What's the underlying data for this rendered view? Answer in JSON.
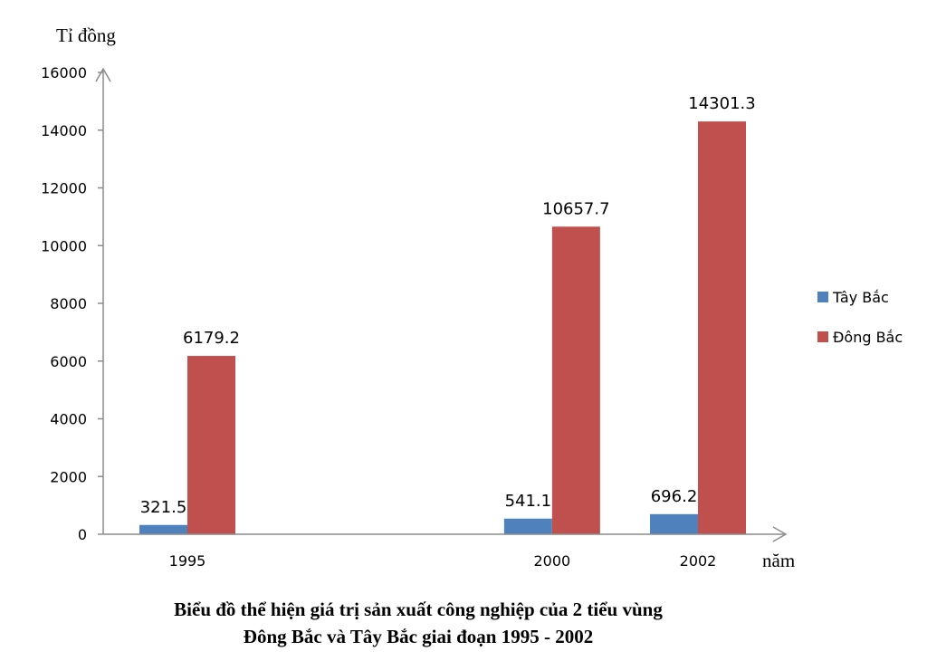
{
  "chart_data": {
    "type": "bar",
    "ylabel": "Tỉ đồng",
    "xlabel": "năm",
    "categories": [
      "1995",
      "2000",
      "2002"
    ],
    "x_positions": [
      1995,
      2000,
      2002
    ],
    "ylim": [
      0,
      16000
    ],
    "yticks": [
      0,
      2000,
      4000,
      6000,
      8000,
      10000,
      12000,
      14000,
      16000
    ],
    "series": [
      {
        "name": "Tây Bắc",
        "color": "#4f81bd",
        "values": [
          321.5,
          541.1,
          696.2
        ]
      },
      {
        "name": "Đông Bắc",
        "color": "#c0504d",
        "values": [
          6179.2,
          10657.7,
          14301.3
        ]
      }
    ],
    "legend": "right",
    "grid": false,
    "title_lines": [
      "Biểu đồ thể hiện giá trị sản xuất công nghiệp của 2 tiểu vùng",
      "Đông Bắc và Tây Bắc giai đoạn 1995 - 2002"
    ]
  }
}
